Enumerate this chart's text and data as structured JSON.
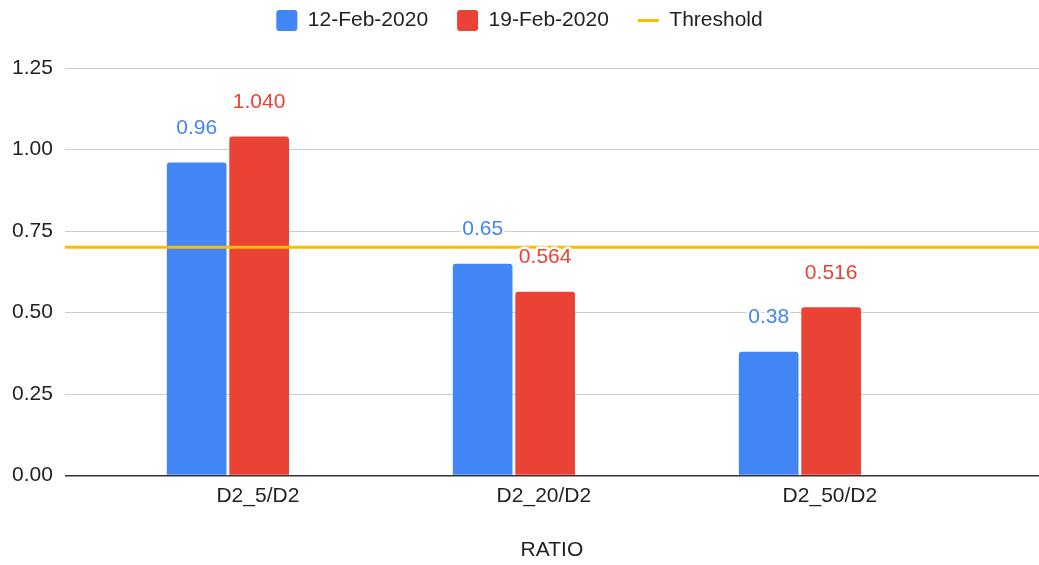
{
  "chart_data": {
    "type": "bar",
    "xlabel": "RATIO",
    "categories": [
      "D2_5/D2",
      "D2_20/D2",
      "D2_50/D2"
    ],
    "series": [
      {
        "name": "12-Feb-2020",
        "color": "#4285f4",
        "values": [
          0.96,
          0.65,
          0.38
        ],
        "value_labels": [
          "0.96",
          "0.65",
          "0.38"
        ]
      },
      {
        "name": "19-Feb-2020",
        "color": "#ea4335",
        "values": [
          1.04,
          0.564,
          0.516
        ],
        "value_labels": [
          "1.040",
          "0.564",
          "0.516"
        ]
      }
    ],
    "ylim": [
      0,
      1.25
    ],
    "yticks": [
      {
        "value": 0,
        "label": "0.00"
      },
      {
        "value": 0.25,
        "label": "0.25"
      },
      {
        "value": 0.5,
        "label": "0.50"
      },
      {
        "value": 0.75,
        "label": "0.75"
      },
      {
        "value": 1,
        "label": "1.00"
      },
      {
        "value": 1.25,
        "label": "1.25"
      }
    ],
    "grid": "y",
    "legend": "top",
    "ref_lines": [
      {
        "axis": "y",
        "value": 0.7,
        "label": "Threshold",
        "color": "#fbbc04"
      }
    ]
  }
}
